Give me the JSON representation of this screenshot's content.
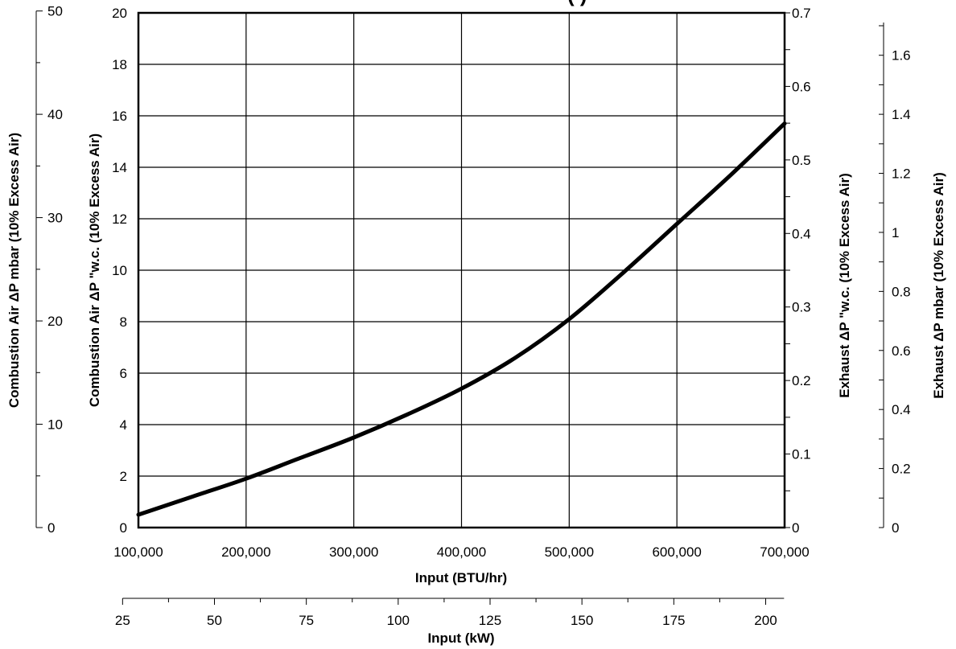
{
  "title_fragment": "(                   )",
  "chart_data": {
    "type": "line",
    "x_axes": {
      "primary": {
        "label": "Input (BTU/hr)",
        "range": [
          100000,
          700000
        ],
        "ticks": [
          100000,
          200000,
          300000,
          400000,
          500000,
          600000,
          700000
        ],
        "tick_labels": [
          "100,000",
          "200,000",
          "300,000",
          "400,000",
          "500,000",
          "600,000",
          "700,000"
        ]
      },
      "secondary": {
        "label": "Input (kW)",
        "ticks": [
          25,
          50,
          75,
          100,
          125,
          150,
          175,
          200
        ],
        "tick_labels": [
          "25",
          "50",
          "75",
          "100",
          "125",
          "150",
          "175",
          "200"
        ]
      }
    },
    "y_axes": {
      "left_primary": {
        "label": "Combustion Air ΔP \"w.c. (10% Excess Air)",
        "range": [
          0,
          20
        ],
        "ticks": [
          0,
          2,
          4,
          6,
          8,
          10,
          12,
          14,
          16,
          18,
          20
        ],
        "tick_labels": [
          "0",
          "2",
          "4",
          "6",
          "8",
          "10",
          "12",
          "14",
          "16",
          "18",
          "20"
        ]
      },
      "left_secondary": {
        "label": "Combustion Air ΔP mbar (10% Excess Air)",
        "ticks": [
          0,
          10,
          20,
          30,
          40,
          50
        ],
        "tick_labels": [
          "0",
          "10",
          "20",
          "30",
          "40",
          "50"
        ]
      },
      "right_primary": {
        "label": "Exhaust ΔP \"w.c. (10% Excess Air)",
        "ticks": [
          0,
          0.1,
          0.2,
          0.3,
          0.4,
          0.5,
          0.6,
          0.7
        ],
        "tick_labels": [
          "0",
          "0.1",
          "0.2",
          "0.3",
          "0.4",
          "0.5",
          "0.6",
          "0.7"
        ]
      },
      "right_secondary": {
        "label": "Exhaust ΔP mbar (10% Excess Air)",
        "ticks": [
          0,
          0.2,
          0.4,
          0.6,
          0.8,
          1,
          1.2,
          1.4,
          1.6
        ],
        "tick_labels": [
          "0",
          "0.2",
          "0.4",
          "0.6",
          "0.8",
          "1",
          "1.2",
          "1.4",
          "1.6"
        ]
      }
    },
    "grid": true,
    "series": [
      {
        "x": [
          100000,
          150000,
          200000,
          250000,
          300000,
          350000,
          400000,
          450000,
          500000,
          550000,
          600000,
          650000,
          700000
        ],
        "y": [
          0.5,
          1.2,
          1.9,
          2.7,
          3.5,
          4.4,
          5.4,
          6.6,
          8.1,
          9.9,
          11.8,
          13.7,
          15.7
        ]
      }
    ]
  }
}
